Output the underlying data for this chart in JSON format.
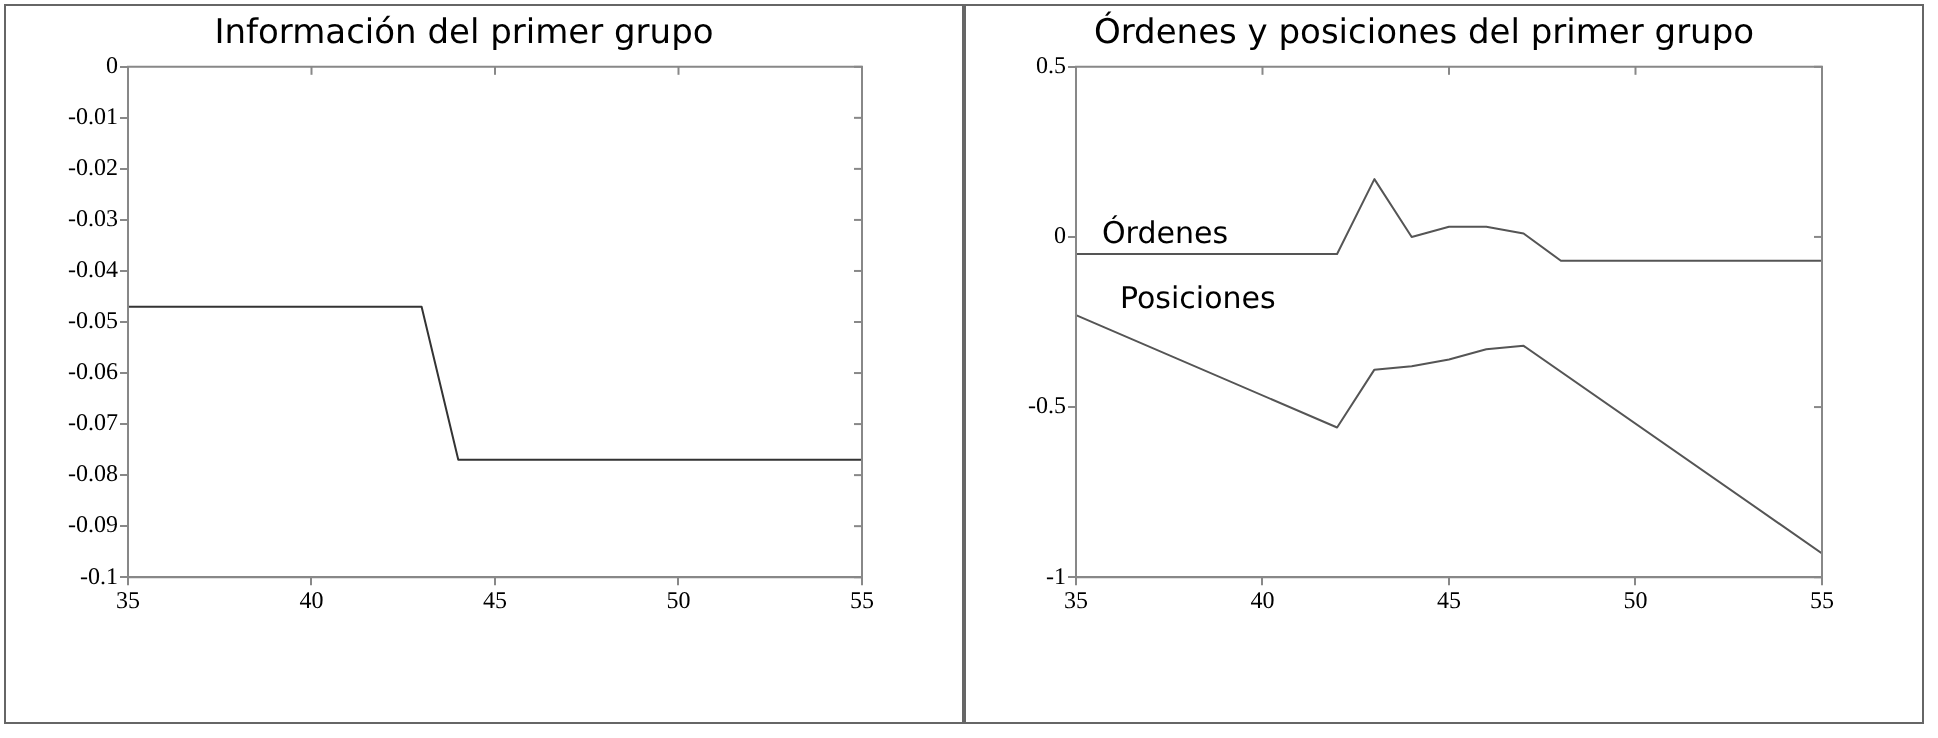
{
  "chart_data": [
    {
      "type": "line",
      "title": "Información del primer grupo",
      "x": [
        35,
        43,
        44,
        55
      ],
      "series": [
        {
          "color": "#333333",
          "values": [
            -0.047,
            -0.047,
            -0.077,
            -0.077
          ]
        }
      ],
      "xlim": [
        35,
        55
      ],
      "xticks": [
        35,
        40,
        45,
        50,
        55
      ],
      "ylim": [
        -0.1,
        0
      ],
      "yticks": [
        -0.1,
        -0.09,
        -0.08,
        -0.07,
        -0.06,
        -0.05,
        -0.04,
        -0.03,
        -0.02,
        -0.01,
        0
      ],
      "grid": false,
      "legend": false,
      "marker": "none",
      "line_style": "solid"
    },
    {
      "type": "line",
      "title": "Órdenes y posiciones del primer grupo",
      "x": [
        35,
        42,
        43,
        44,
        45,
        46,
        47,
        48,
        55
      ],
      "series": [
        {
          "name": "Órdenes",
          "color": "#555555",
          "values": [
            -0.05,
            -0.05,
            0.17,
            0.0,
            0.03,
            0.03,
            0.01,
            -0.07,
            -0.07
          ]
        },
        {
          "name": "Posiciones",
          "color": "#555555",
          "x": [
            35,
            42,
            43,
            44,
            45,
            46,
            47,
            55
          ],
          "values": [
            -0.23,
            -0.56,
            -0.39,
            -0.38,
            -0.36,
            -0.33,
            -0.32,
            -0.93
          ]
        }
      ],
      "xlim": [
        35,
        55
      ],
      "xticks": [
        35,
        40,
        45,
        50,
        55
      ],
      "ylim": [
        -1,
        0.5
      ],
      "yticks": [
        -1,
        -0.5,
        0,
        0.5
      ],
      "grid": false,
      "legend": false,
      "marker": "none",
      "line_style": "solid"
    }
  ]
}
